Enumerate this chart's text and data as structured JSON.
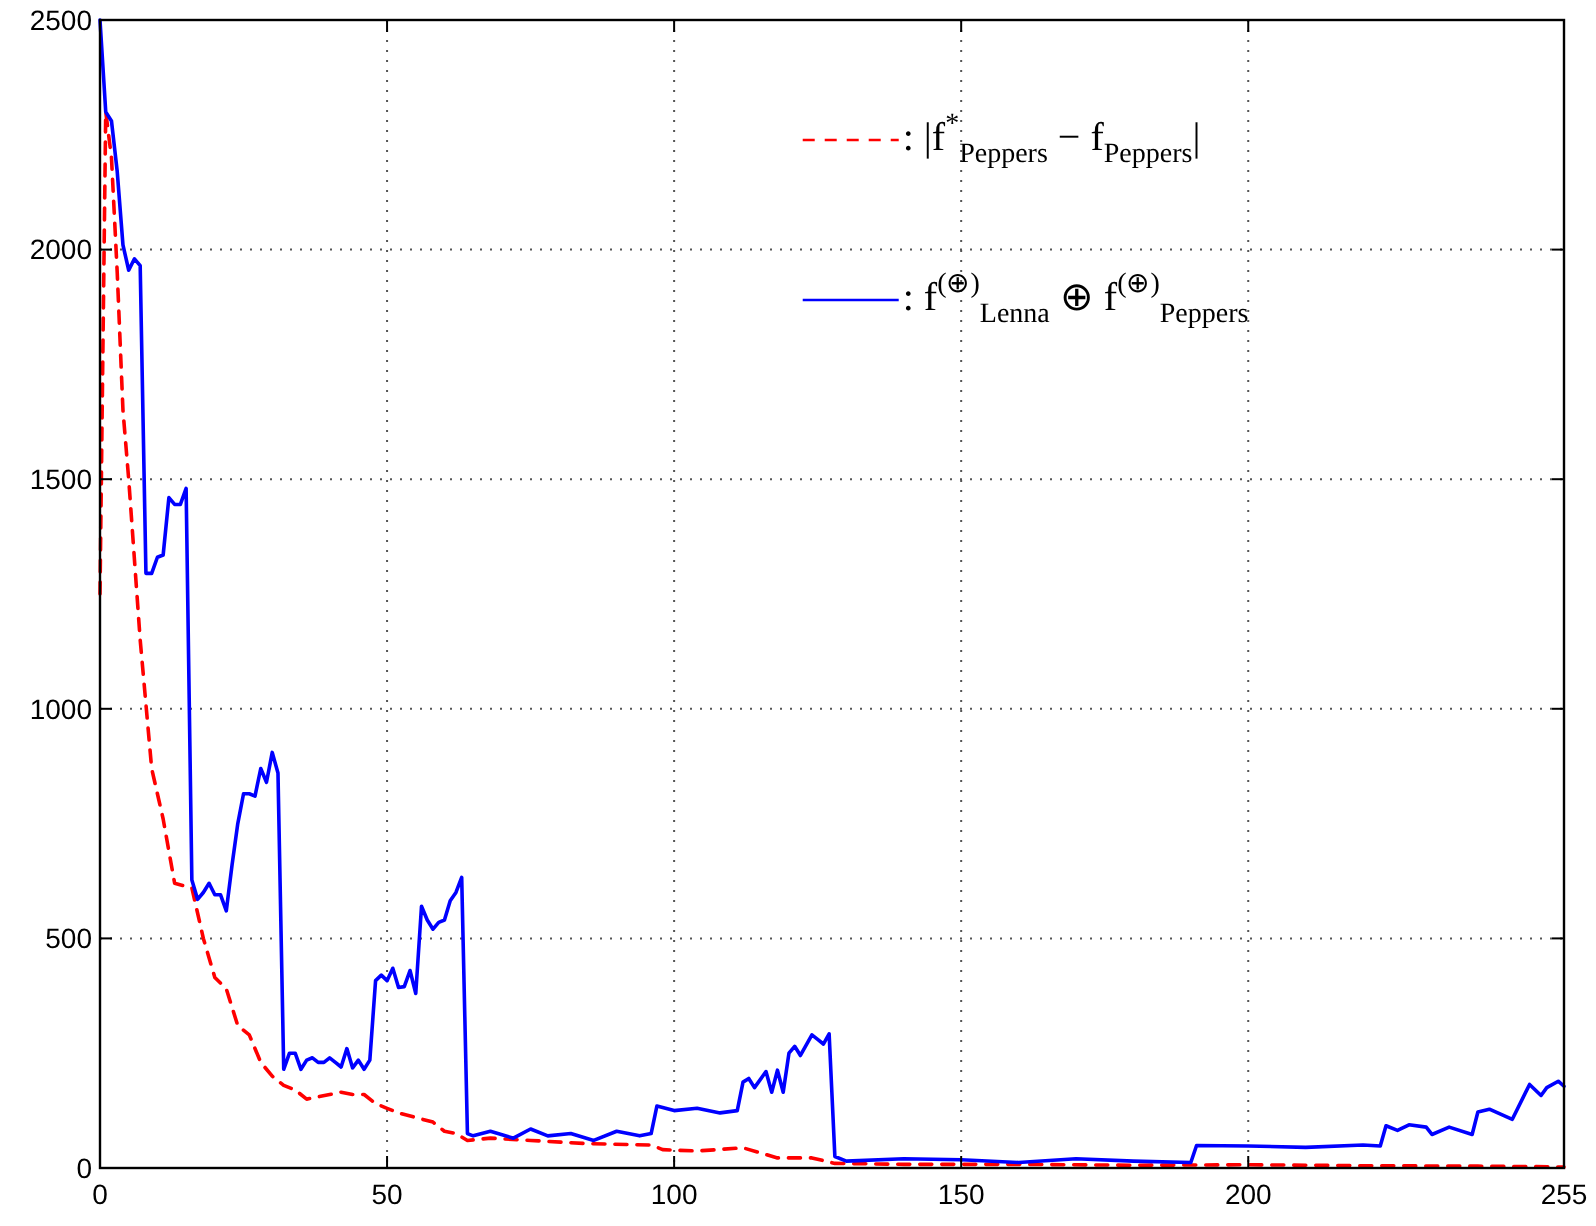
{
  "chart_data": {
    "type": "line",
    "xlim": [
      0,
      255
    ],
    "ylim": [
      0,
      2500
    ],
    "xticks": [
      0,
      50,
      100,
      150,
      200,
      255
    ],
    "yticks": [
      0,
      500,
      1000,
      1500,
      2000,
      2500
    ],
    "grid": true,
    "legend": "top right",
    "series": [
      {
        "name": ":  |f$^{*}$$_{Peppers}$ − f$_{Peppers}$|",
        "color": "#ff0000",
        "line_style": "dashed",
        "x": [
          0,
          1,
          2,
          3,
          4,
          5,
          7,
          9,
          11,
          13,
          16,
          18,
          20,
          22,
          24,
          26,
          28,
          30,
          32,
          34,
          36,
          38,
          40,
          42,
          44,
          46,
          48,
          50,
          52,
          55,
          58,
          60,
          62,
          64,
          68,
          75,
          85,
          96,
          98,
          104,
          112,
          118,
          124,
          128,
          140,
          160,
          180,
          200,
          220,
          240,
          250,
          255
        ],
        "values": [
          1250,
          2300,
          2200,
          1950,
          1650,
          1500,
          1150,
          870,
          760,
          620,
          610,
          500,
          415,
          390,
          310,
          290,
          230,
          200,
          180,
          170,
          150,
          155,
          160,
          165,
          160,
          160,
          140,
          130,
          120,
          110,
          100,
          80,
          75,
          60,
          65,
          60,
          53,
          50,
          40,
          37,
          44,
          22,
          22,
          10,
          8,
          8,
          6,
          7,
          5,
          4,
          3,
          2
        ]
      },
      {
        "name": ":  f$^{(⊕)}$$_{Lenna}$ ⊕ f$^{(⊕)}$$_{Peppers}$",
        "color": "#0000ff",
        "line_style": "solid",
        "x": [
          0,
          1,
          2,
          3,
          4,
          5,
          6,
          7,
          8,
          9,
          10,
          11,
          12,
          13,
          14,
          15,
          16,
          17,
          18,
          19,
          20,
          21,
          22,
          23,
          24,
          25,
          26,
          27,
          28,
          29,
          30,
          31,
          32,
          33,
          34,
          35,
          36,
          37,
          38,
          39,
          40,
          41,
          42,
          43,
          44,
          45,
          46,
          47,
          48,
          49,
          50,
          51,
          52,
          53,
          54,
          55,
          56,
          57,
          58,
          59,
          60,
          61,
          62,
          63,
          64,
          65,
          68,
          72,
          75,
          78,
          82,
          86,
          90,
          94,
          96,
          97,
          100,
          104,
          108,
          111,
          112,
          113,
          114,
          116,
          117,
          118,
          119,
          120,
          121,
          122,
          124,
          125,
          126,
          127,
          128,
          130,
          140,
          150,
          160,
          170,
          180,
          190,
          191,
          200,
          210,
          220,
          223,
          224,
          226,
          228,
          231,
          232,
          235,
          239,
          240,
          242,
          246,
          249,
          251,
          252,
          254,
          255
        ],
        "values": [
          2500,
          2300,
          2280,
          2170,
          2010,
          1955,
          1980,
          1965,
          1295,
          1295,
          1330,
          1335,
          1460,
          1445,
          1445,
          1480,
          627,
          585,
          600,
          620,
          595,
          595,
          560,
          660,
          750,
          815,
          815,
          810,
          870,
          840,
          905,
          860,
          215,
          250,
          250,
          215,
          235,
          240,
          230,
          230,
          240,
          230,
          220,
          260,
          218,
          235,
          215,
          235,
          408,
          420,
          408,
          435,
          393,
          395,
          430,
          380,
          570,
          540,
          520,
          535,
          540,
          582,
          600,
          633,
          75,
          70,
          80,
          65,
          85,
          70,
          75,
          60,
          80,
          70,
          75,
          135,
          125,
          130,
          120,
          125,
          187,
          195,
          175,
          210,
          165,
          213,
          165,
          250,
          265,
          245,
          290,
          280,
          270,
          292,
          25,
          15,
          20,
          18,
          12,
          20,
          15,
          12,
          49,
          48,
          45,
          50,
          48,
          92,
          82,
          94,
          89,
          73,
          89,
          73,
          122,
          128,
          106,
          182,
          158,
          175,
          189,
          178
        ]
      }
    ]
  }
}
